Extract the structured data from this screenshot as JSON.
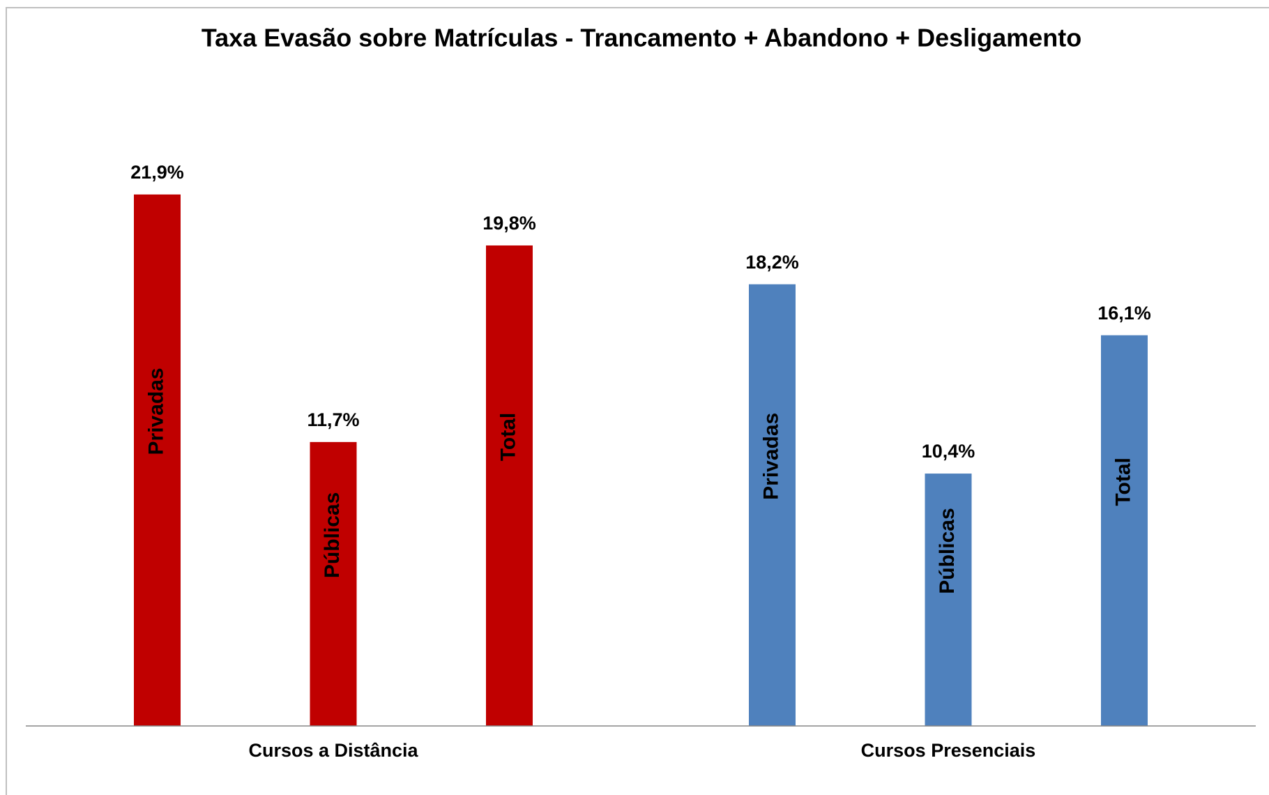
{
  "chart_data": {
    "type": "grouped-bar",
    "title": "Taxa Evasão sobre Matrículas - Trancamento + Abandono + Desligamento",
    "categories": [
      "Cursos a Distância",
      "Cursos Presenciais"
    ],
    "group_colors": [
      "#c00000",
      "#4f81bd"
    ],
    "series": [
      {
        "name": "Privadas",
        "values": [
          21.9,
          18.2
        ],
        "value_labels": [
          "21,9%",
          "18,2%"
        ]
      },
      {
        "name": "Públicas",
        "values": [
          11.7,
          10.4
        ],
        "value_labels": [
          "11,7%",
          "10,4%"
        ]
      },
      {
        "name": "Total",
        "values": [
          19.8,
          16.1
        ],
        "value_labels": [
          "19,8%",
          "16,1%"
        ]
      }
    ],
    "ylim": [
      0,
      25
    ]
  }
}
